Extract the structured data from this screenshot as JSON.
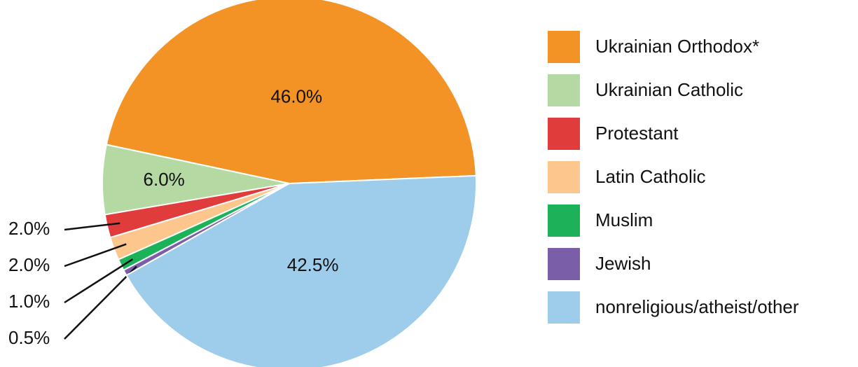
{
  "chart_data": {
    "type": "pie",
    "categories": [
      "Ukrainian Orthodox*",
      "Ukrainian Catholic",
      "Protestant",
      "Latin Catholic",
      "Muslim",
      "Jewish",
      "nonreligious/atheist/other"
    ],
    "values": [
      46.0,
      6.0,
      2.0,
      2.0,
      1.0,
      0.5,
      42.5
    ],
    "value_labels": [
      "46.0%",
      "6.0%",
      "2.0%",
      "2.0%",
      "1.0%",
      "0.5%",
      "42.5%"
    ],
    "colors": [
      "#f39325",
      "#b5d9a3",
      "#e03c3c",
      "#fdc68d",
      "#1cb25a",
      "#7b5ea8",
      "#9ecdec"
    ],
    "legend": "right"
  }
}
